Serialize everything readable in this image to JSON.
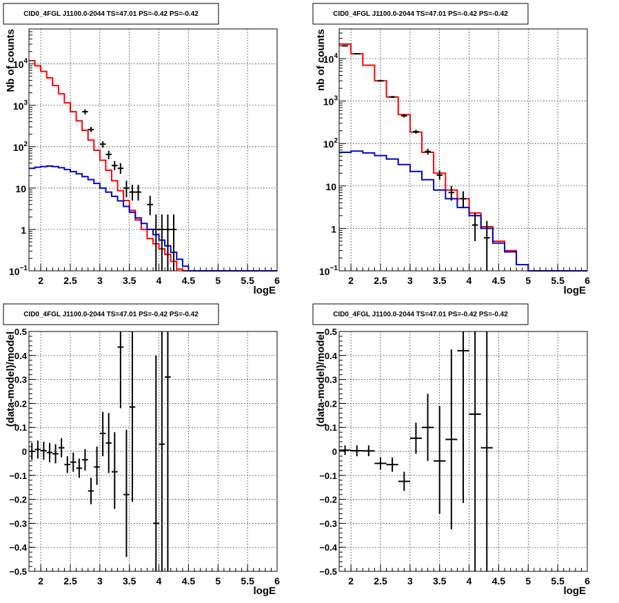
{
  "colors": {
    "data": "#000000",
    "total_model": "#ff0000",
    "component_model": "#0000cc",
    "grid": "#000000"
  },
  "chart_data": [
    {
      "type": "line",
      "title": "CID0_4FGL J1100.0-2044 TS=47.01 PS=-0.42 PS=-0.42",
      "xlabel": "logE",
      "ylabel": "Nb of counts",
      "xlim": [
        1.8,
        6.0
      ],
      "ylim": [
        0.1,
        70000
      ],
      "yscale": "log",
      "grid": true,
      "x_ticks": [
        "2",
        "2.5",
        "3",
        "3.5",
        "4",
        "4.5",
        "5",
        "5.5",
        "6"
      ],
      "y_ticks": [
        {
          "base": "10",
          "exp": "−1",
          "value": 0.1
        },
        {
          "base": "1",
          "exp": "",
          "value": 1
        },
        {
          "base": "10",
          "exp": "",
          "value": 10
        },
        {
          "base": "10",
          "exp": "2",
          "value": 100
        },
        {
          "base": "10",
          "exp": "3",
          "value": 1000
        },
        {
          "base": "10",
          "exp": "4",
          "value": 10000
        }
      ],
      "bin_edges": [
        1.8,
        1.9,
        2.0,
        2.1,
        2.2,
        2.3,
        2.4,
        2.5,
        2.6,
        2.7,
        2.8,
        2.9,
        3.0,
        3.1,
        3.2,
        3.3,
        3.4,
        3.5,
        3.6,
        3.7,
        3.8,
        3.9,
        4.0,
        4.1,
        4.2,
        4.3,
        4.4,
        4.5,
        4.6,
        4.7,
        4.8,
        4.9,
        5.0,
        5.1,
        5.2,
        5.3,
        5.4,
        5.5,
        5.6,
        5.7,
        5.8,
        5.9,
        6.0
      ],
      "series": [
        {
          "role": "total_model",
          "style": "step",
          "values": [
            12000,
            9000,
            6600,
            4600,
            3000,
            1900,
            1150,
            700,
            420,
            250,
            145,
            82,
            47,
            27,
            15,
            8.6,
            5,
            2.9,
            1.7,
            1.0,
            0.6,
            0.45,
            0.34,
            0.25,
            0.17,
            0.11,
            0.1,
            0.1,
            0.1,
            0.1,
            0.1,
            0.1,
            0.1,
            0.1,
            0.1,
            0.1,
            0.1,
            0.1,
            0.1,
            0.1,
            0.1,
            0.1
          ]
        },
        {
          "role": "component_model",
          "style": "step",
          "values": [
            30,
            32,
            33,
            34,
            33,
            31,
            28,
            25,
            22,
            19,
            16,
            13,
            10,
            8,
            6.3,
            4.9,
            3.6,
            2.6,
            1.9,
            1.4,
            1.0,
            0.75,
            0.55,
            0.4,
            0.28,
            0.19,
            0.13,
            0.1,
            0.1,
            0.1,
            0.1,
            0.1,
            0.1,
            0.1,
            0.1,
            0.1,
            0.1,
            0.1,
            0.1,
            0.1,
            0.1,
            0.1
          ]
        },
        {
          "role": "data",
          "style": "errorbar",
          "points": [
            {
              "x": 2.75,
              "y": 700,
              "lo": 600,
              "hi": 800
            },
            {
              "x": 2.85,
              "y": 260,
              "lo": 225,
              "hi": 300
            },
            {
              "x": 3.05,
              "y": 115,
              "lo": 95,
              "hi": 135
            },
            {
              "x": 3.15,
              "y": 65,
              "lo": 50,
              "hi": 80
            },
            {
              "x": 3.25,
              "y": 35,
              "lo": 27,
              "hi": 45
            },
            {
              "x": 3.35,
              "y": 30,
              "lo": 22,
              "hi": 40
            },
            {
              "x": 3.45,
              "y": 10,
              "lo": 6,
              "hi": 15
            },
            {
              "x": 3.55,
              "y": 8,
              "lo": 5,
              "hi": 12
            },
            {
              "x": 3.65,
              "y": 8,
              "lo": 5,
              "hi": 12
            },
            {
              "x": 3.85,
              "y": 4,
              "lo": 2.2,
              "hi": 6.5
            },
            {
              "x": 3.95,
              "y": 1,
              "lo": 0.1,
              "hi": 2.3
            },
            {
              "x": 4.05,
              "y": 1,
              "lo": 0.1,
              "hi": 2.3
            },
            {
              "x": 4.15,
              "y": 1,
              "lo": 0.1,
              "hi": 2.3
            },
            {
              "x": 4.25,
              "y": 1,
              "lo": 0.1,
              "hi": 2.3
            }
          ]
        }
      ]
    },
    {
      "type": "line",
      "title": "CID0_4FGL J1100.0-2044 TS=47.01 PS=-0.42 PS=-0.42",
      "xlabel": "logE",
      "ylabel": "nb of counts",
      "xlim": [
        1.8,
        6.0
      ],
      "ylim": [
        0.1,
        50000
      ],
      "yscale": "log",
      "grid": true,
      "x_ticks": [
        "2",
        "2.5",
        "3",
        "3.5",
        "4",
        "4.5",
        "5",
        "5.5",
        "6"
      ],
      "y_ticks": [
        {
          "base": "10",
          "exp": "−1",
          "value": 0.1
        },
        {
          "base": "1",
          "exp": "",
          "value": 1
        },
        {
          "base": "10",
          "exp": "",
          "value": 10
        },
        {
          "base": "10",
          "exp": "2",
          "value": 100
        },
        {
          "base": "10",
          "exp": "3",
          "value": 1000
        },
        {
          "base": "10",
          "exp": "4",
          "value": 10000
        }
      ],
      "bin_edges": [
        1.8,
        2.0,
        2.2,
        2.4,
        2.6,
        2.8,
        3.0,
        3.2,
        3.4,
        3.6,
        3.8,
        4.0,
        4.2,
        4.4,
        4.6,
        4.8,
        5.0,
        5.2,
        5.4,
        5.6,
        5.8,
        6.0
      ],
      "series": [
        {
          "role": "total_model",
          "style": "step",
          "values": [
            22000,
            13000,
            7000,
            3000,
            1250,
            480,
            185,
            62,
            20,
            8,
            5,
            2.3,
            1.1,
            0.5,
            0.3,
            0.14,
            0.1,
            0.1,
            0.1,
            0.1,
            0.1
          ]
        },
        {
          "role": "component_model",
          "style": "step",
          "values": [
            62,
            66,
            60,
            52,
            43,
            32,
            22,
            14,
            8,
            5,
            3.1,
            2.0,
            1.0,
            0.45,
            0.28,
            0.14,
            0.1,
            0.1,
            0.1,
            0.1,
            0.1
          ]
        },
        {
          "role": "data",
          "style": "errorbar",
          "points": [
            {
              "x": 1.9,
              "y": 20000,
              "lo": 19500,
              "hi": 20500
            },
            {
              "x": 2.1,
              "y": 13000,
              "lo": 12600,
              "hi": 13400
            },
            {
              "x": 2.5,
              "y": 3000,
              "lo": 2880,
              "hi": 3120
            },
            {
              "x": 2.7,
              "y": 1250,
              "lo": 1180,
              "hi": 1320
            },
            {
              "x": 2.9,
              "y": 450,
              "lo": 410,
              "hi": 490
            },
            {
              "x": 3.1,
              "y": 190,
              "lo": 170,
              "hi": 210
            },
            {
              "x": 3.3,
              "y": 65,
              "lo": 55,
              "hi": 75
            },
            {
              "x": 3.5,
              "y": 18,
              "lo": 14,
              "hi": 23
            },
            {
              "x": 3.7,
              "y": 7,
              "lo": 4.5,
              "hi": 10
            },
            {
              "x": 3.9,
              "y": 5,
              "lo": 3,
              "hi": 7.5
            },
            {
              "x": 4.1,
              "y": 1.2,
              "lo": 0.5,
              "hi": 2.3
            },
            {
              "x": 4.3,
              "y": 0.6,
              "lo": 0.1,
              "hi": 1.5
            }
          ]
        }
      ]
    },
    {
      "type": "scatter",
      "title": "CID0_4FGL J1100.0-2044 TS=47.01 PS=-0.42 PS=-0.42",
      "xlabel": "logE",
      "ylabel": "(data-model)/model",
      "xlim": [
        1.8,
        6.0
      ],
      "ylim": [
        -0.5,
        0.5
      ],
      "yscale": "linear",
      "grid": true,
      "x_ticks": [
        "2",
        "2.5",
        "3",
        "3.5",
        "4",
        "4.5",
        "5",
        "5.5",
        "6"
      ],
      "y_ticks": [
        "−0.5",
        "−0.4",
        "−0.3",
        "−0.2",
        "−0.1",
        "0",
        "0.1",
        "0.2",
        "0.3",
        "0.4",
        "0.5"
      ],
      "series": [
        {
          "role": "data",
          "style": "errorbar",
          "xhalf": 0.05,
          "points": [
            {
              "x": 1.85,
              "y": 0.0,
              "lo": -0.035,
              "hi": 0.035
            },
            {
              "x": 1.95,
              "y": 0.008,
              "lo": -0.03,
              "hi": 0.045
            },
            {
              "x": 2.05,
              "y": 0.003,
              "lo": -0.035,
              "hi": 0.04
            },
            {
              "x": 2.15,
              "y": -0.005,
              "lo": -0.045,
              "hi": 0.035
            },
            {
              "x": 2.25,
              "y": -0.01,
              "lo": -0.05,
              "hi": 0.03
            },
            {
              "x": 2.35,
              "y": 0.015,
              "lo": -0.025,
              "hi": 0.055
            },
            {
              "x": 2.45,
              "y": -0.055,
              "lo": -0.09,
              "hi": -0.02
            },
            {
              "x": 2.55,
              "y": -0.045,
              "lo": -0.085,
              "hi": -0.005
            },
            {
              "x": 2.65,
              "y": -0.07,
              "lo": -0.11,
              "hi": -0.03
            },
            {
              "x": 2.75,
              "y": -0.035,
              "lo": -0.08,
              "hi": 0.01
            },
            {
              "x": 2.85,
              "y": -0.165,
              "lo": -0.22,
              "hi": -0.11
            },
            {
              "x": 2.95,
              "y": -0.065,
              "lo": -0.14,
              "hi": 0.02
            },
            {
              "x": 3.05,
              "y": 0.075,
              "lo": -0.02,
              "hi": 0.165
            },
            {
              "x": 3.15,
              "y": 0.035,
              "lo": -0.09,
              "hi": 0.16
            },
            {
              "x": 3.25,
              "y": -0.085,
              "lo": -0.24,
              "hi": 0.08
            },
            {
              "x": 3.35,
              "y": 0.435,
              "lo": 0.18,
              "hi": 0.5
            },
            {
              "x": 3.45,
              "y": -0.18,
              "lo": -0.44,
              "hi": 0.09
            },
            {
              "x": 3.55,
              "y": 0.185,
              "lo": -0.21,
              "hi": 0.5
            },
            {
              "x": 3.95,
              "y": -0.3,
              "lo": -0.5,
              "hi": 0.4
            },
            {
              "x": 4.05,
              "y": 0.03,
              "lo": -0.5,
              "hi": 0.5
            },
            {
              "x": 4.15,
              "y": 0.31,
              "lo": -0.5,
              "hi": 0.5
            }
          ]
        }
      ]
    },
    {
      "type": "scatter",
      "title": "CID0_4FGL J1100.0-2044 TS=47.01 PS=-0.42 PS=-0.42",
      "xlabel": "logE",
      "ylabel": "(data-model)/model",
      "xlim": [
        1.8,
        6.0
      ],
      "ylim": [
        -0.5,
        0.5
      ],
      "yscale": "linear",
      "grid": true,
      "x_ticks": [
        "2",
        "2.5",
        "3",
        "3.5",
        "4",
        "4.5",
        "5",
        "5.5",
        "6"
      ],
      "y_ticks": [
        "−0.5",
        "−0.4",
        "−0.3",
        "−0.2",
        "−0.1",
        "0",
        "0.1",
        "0.2",
        "0.3",
        "0.4",
        "0.5"
      ],
      "series": [
        {
          "role": "data",
          "style": "errorbar",
          "xhalf": 0.1,
          "points": [
            {
              "x": 1.9,
              "y": 0.005,
              "lo": -0.015,
              "hi": 0.025
            },
            {
              "x": 2.1,
              "y": 0.003,
              "lo": -0.02,
              "hi": 0.025
            },
            {
              "x": 2.3,
              "y": 0.002,
              "lo": -0.02,
              "hi": 0.025
            },
            {
              "x": 2.5,
              "y": -0.05,
              "lo": -0.075,
              "hi": -0.025
            },
            {
              "x": 2.7,
              "y": -0.055,
              "lo": -0.085,
              "hi": -0.025
            },
            {
              "x": 2.9,
              "y": -0.125,
              "lo": -0.165,
              "hi": -0.085
            },
            {
              "x": 3.1,
              "y": 0.055,
              "lo": -0.01,
              "hi": 0.12
            },
            {
              "x": 3.3,
              "y": 0.1,
              "lo": -0.04,
              "hi": 0.24
            },
            {
              "x": 3.5,
              "y": -0.04,
              "lo": -0.26,
              "hi": 0.19
            },
            {
              "x": 3.7,
              "y": 0.05,
              "lo": -0.325,
              "hi": 0.425
            },
            {
              "x": 3.9,
              "y": 0.42,
              "lo": -0.215,
              "hi": 0.5
            },
            {
              "x": 4.1,
              "y": 0.155,
              "lo": -0.5,
              "hi": 0.5
            },
            {
              "x": 4.3,
              "y": 0.015,
              "lo": -0.5,
              "hi": 0.5
            }
          ]
        }
      ]
    }
  ]
}
